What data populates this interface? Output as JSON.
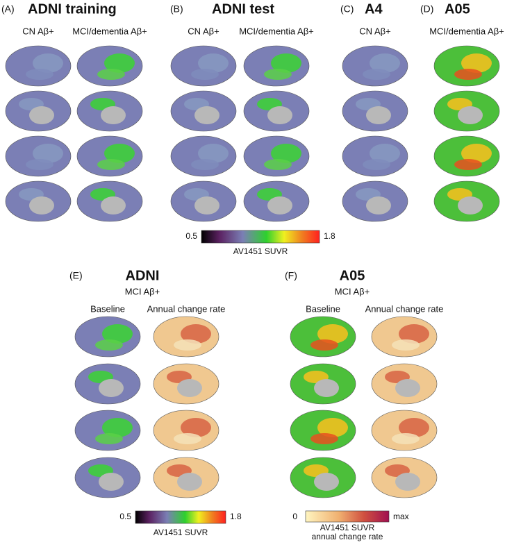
{
  "panels": [
    {
      "label": "(A)",
      "title": "ADNI training",
      "columns": [
        "CN Aβ+",
        "MCI/dementia Aβ+"
      ]
    },
    {
      "label": "(B)",
      "title": "ADNI test",
      "columns": [
        "CN Aβ+",
        "MCI/dementia Aβ+"
      ]
    },
    {
      "label": "(C)",
      "title": "A4",
      "columns": [
        "CN Aβ+"
      ]
    },
    {
      "label": "(D)",
      "title": "A05",
      "columns": [
        "MCI/dementia Aβ+"
      ]
    },
    {
      "label": "(E)",
      "title": "ADNI",
      "subtitle": "MCI Aβ+",
      "columns": [
        "Baseline",
        "Annual change rate"
      ]
    },
    {
      "label": "(F)",
      "title": "A05",
      "subtitle": "MCI Aβ+",
      "columns": [
        "Baseline",
        "Annual change rate"
      ]
    }
  ],
  "colorbars": [
    {
      "min": "0.5",
      "max": "1.8",
      "title": "AV1451 SUVR"
    },
    {
      "min": "0.5",
      "max": "1.8",
      "title": "AV1451 SUVR"
    },
    {
      "min": "0",
      "max": "max",
      "title": "AV1451 SUVR",
      "subtitle": "annual change rate"
    }
  ]
}
